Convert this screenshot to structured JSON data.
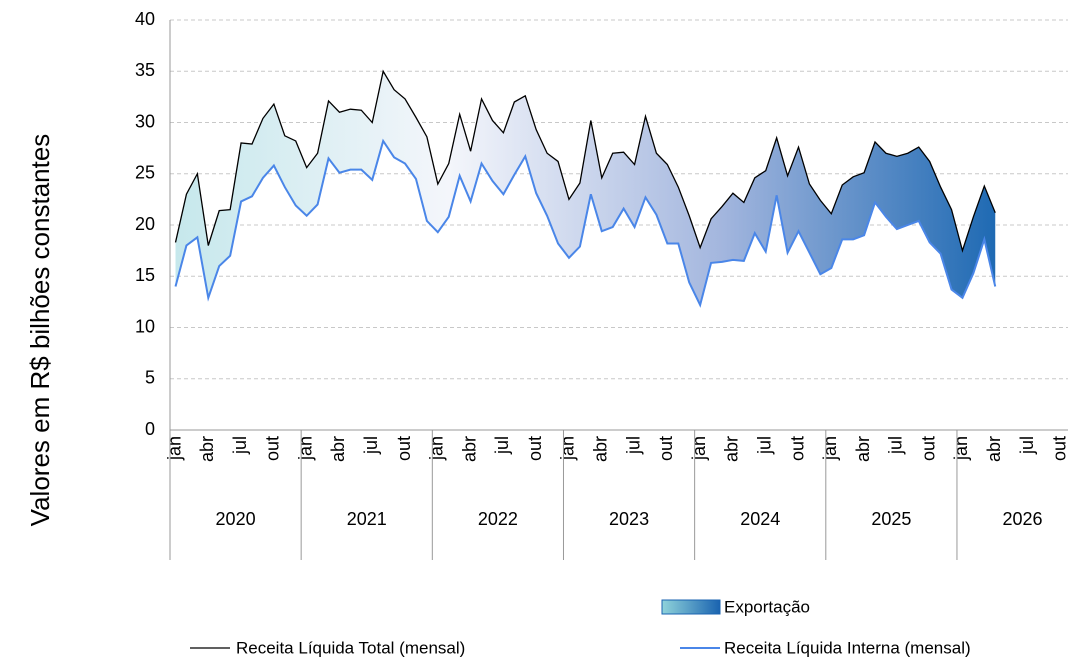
{
  "chart_data": {
    "type": "line",
    "y_label": "Valores em R$ bilhões constantes",
    "categories": [
      "jan",
      null,
      null,
      "abr",
      null,
      null,
      "jul",
      null,
      null,
      "out",
      null,
      null,
      "jan",
      null,
      null,
      "abr",
      null,
      null,
      "jul",
      null,
      null,
      "out",
      null,
      null,
      "jan",
      null,
      null,
      "abr",
      null,
      null,
      "jul",
      null,
      null,
      "out",
      null,
      null,
      "jan",
      null,
      null,
      "abr",
      null,
      null,
      "jul",
      null,
      null,
      "out",
      null,
      null,
      "jan",
      null,
      null,
      "abr",
      null,
      null,
      "jul",
      null,
      null,
      "out",
      null,
      null,
      "jan",
      null,
      null,
      "abr",
      null,
      null,
      "jul",
      null,
      null,
      "out",
      null,
      null,
      "jan",
      null,
      null,
      "abr",
      null,
      null,
      "jul",
      null,
      null,
      "out",
      null,
      null
    ],
    "years": [
      "2020",
      "2021",
      "2022",
      "2023",
      "2024",
      "2025",
      "2026"
    ],
    "ylim": [
      0,
      40
    ],
    "yticks": [
      0,
      5,
      10,
      15,
      20,
      25,
      30,
      35,
      40
    ],
    "grid": true,
    "fill_between": {
      "name": "Exportação",
      "colors": [
        "#c6e8ec",
        "#f4f6fb",
        "#a3b6de",
        "#1f6ab3"
      ]
    },
    "series": [
      {
        "name": "Receita Líquida Total (mensal)",
        "color": "#000000",
        "values": [
          18.3,
          23,
          25,
          18,
          21.4,
          21.5,
          28,
          27.9,
          30.4,
          31.8,
          28.7,
          28.2,
          25.6,
          27,
          32.1,
          31,
          31.3,
          31.2,
          30,
          35,
          33.2,
          32.3,
          30.5,
          28.6,
          24,
          26,
          30.8,
          27.2,
          32.3,
          30.2,
          29,
          32,
          32.6,
          29.3,
          27,
          26.2,
          22.5,
          24.1,
          30.2,
          24.6,
          27,
          27.1,
          25.9,
          30.6,
          27,
          25.9,
          23.7,
          20.9,
          17.8,
          20.6,
          21.8,
          23.1,
          22.2,
          24.6,
          25.3,
          28.5,
          24.8,
          27.6,
          24,
          22.4,
          21.1,
          23.9,
          24.7,
          25.1,
          28.1,
          27,
          26.7,
          27,
          27.6,
          26.2,
          23.7,
          21.5,
          17.5,
          20.8,
          23.8,
          21.2,
          null,
          null,
          null,
          null,
          null,
          null,
          null,
          null
        ]
      },
      {
        "name": "Receita Líquida Interna (mensal)",
        "color": "#4a86e8",
        "values": [
          14,
          18,
          18.8,
          12.9,
          16,
          17,
          22.3,
          22.8,
          24.6,
          25.8,
          23.7,
          21.9,
          20.9,
          22,
          26.5,
          25.1,
          25.4,
          25.4,
          24.4,
          28.2,
          26.6,
          26,
          24.5,
          20.4,
          19.3,
          20.8,
          24.8,
          22.3,
          26,
          24.3,
          23,
          24.9,
          26.7,
          23.1,
          20.9,
          18.2,
          16.8,
          17.9,
          23,
          19.4,
          19.8,
          21.6,
          19.8,
          22.7,
          21,
          18.2,
          18.2,
          14.4,
          12.2,
          16.3,
          16.4,
          16.6,
          16.5,
          19.2,
          17.4,
          22.9,
          17.3,
          19.4,
          17.3,
          15.2,
          15.8,
          18.6,
          18.6,
          19,
          22.2,
          20.8,
          19.6,
          20,
          20.4,
          18.3,
          17.2,
          13.7,
          12.9,
          15.3,
          18.6,
          14,
          null,
          null,
          null,
          null,
          null,
          null,
          null,
          null
        ]
      }
    ]
  }
}
